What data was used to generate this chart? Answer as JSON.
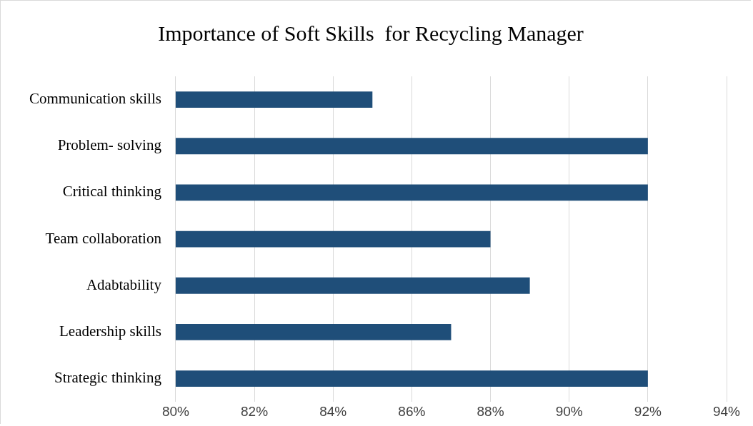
{
  "chart_data": {
    "type": "bar",
    "orientation": "horizontal",
    "title": "Importance of Soft Skills  for Recycling Manager",
    "categories": [
      "Communication skills",
      "Problem- solving",
      "Critical thinking",
      "Team collaboration",
      "Adabtability",
      "Leadership skills",
      "Strategic thinking"
    ],
    "values": [
      85,
      92,
      92,
      88,
      89,
      87,
      92
    ],
    "color": "#1f4e79",
    "xlim": [
      80,
      94
    ],
    "xticks": [
      {
        "value": 80,
        "label": "80%"
      },
      {
        "value": 82,
        "label": "82%"
      },
      {
        "value": 84,
        "label": "84%"
      },
      {
        "value": 86,
        "label": "86%"
      },
      {
        "value": 88,
        "label": "88%"
      },
      {
        "value": 90,
        "label": "90%"
      },
      {
        "value": 92,
        "label": "92%"
      },
      {
        "value": 94,
        "label": "94%"
      }
    ],
    "grid": "x",
    "legend": false
  }
}
